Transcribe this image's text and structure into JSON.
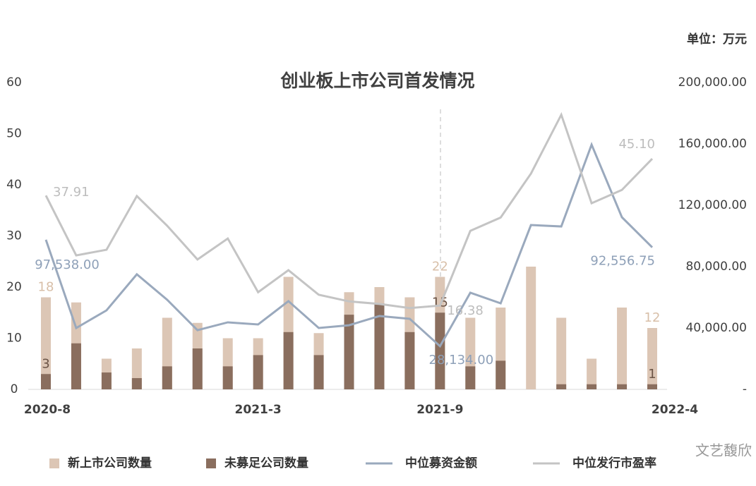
{
  "chart_data": {
    "type": "bar",
    "title": "创业板上市公司首发情况",
    "unit": "单位：万元",
    "watermark": "文艺馥欣",
    "categories": [
      "2020-8",
      null,
      null,
      null,
      null,
      null,
      null,
      "2021-3",
      null,
      null,
      null,
      null,
      null,
      "2021-9",
      null,
      null,
      null,
      null,
      null,
      null,
      "2022-4"
    ],
    "ylim": [
      0,
      60
    ],
    "yticks": [
      0,
      10,
      20,
      30,
      40,
      50,
      60
    ],
    "y2lim": [
      0,
      200000
    ],
    "y2ticks": [
      {
        "value": 0,
        "label": "-"
      },
      {
        "value": 40000,
        "label": "40,000.00"
      },
      {
        "value": 80000,
        "label": "80,000.00"
      },
      {
        "value": 120000,
        "label": "120,000.00"
      },
      {
        "value": 160000,
        "label": "160,000.00"
      },
      {
        "value": 200000,
        "label": "200,000.00"
      }
    ],
    "series": [
      {
        "name": "新上市公司数量",
        "type": "bar",
        "color": "#dcc6b5",
        "values": [
          18,
          17,
          6,
          8,
          14,
          13,
          10,
          10,
          22,
          11,
          19,
          20,
          18,
          22,
          14,
          16,
          24,
          14,
          6,
          16,
          12
        ],
        "value_labels": [
          "18",
          null,
          null,
          null,
          null,
          null,
          null,
          null,
          null,
          null,
          null,
          null,
          null,
          "22",
          null,
          null,
          null,
          null,
          null,
          null,
          "12"
        ]
      },
      {
        "name": "未募足公司数量",
        "type": "bar",
        "color": "#8a6e5e",
        "values": [
          3,
          9,
          3.3,
          2.2,
          4.5,
          8,
          4.5,
          6.7,
          11.2,
          6.7,
          14.6,
          16.8,
          11.2,
          15,
          4.5,
          5.6,
          0,
          1,
          1,
          1,
          1
        ],
        "value_labels": [
          "3",
          null,
          null,
          null,
          null,
          null,
          null,
          null,
          null,
          null,
          null,
          null,
          null,
          "15",
          null,
          null,
          null,
          null,
          null,
          null,
          "1"
        ]
      },
      {
        "name": "中位募资金额",
        "type": "line",
        "axis": "y2",
        "color": "#9aa9bd",
        "values": [
          97538,
          40000,
          51500,
          75000,
          58400,
          38600,
          43700,
          42300,
          57500,
          40000,
          41800,
          47800,
          46000,
          28134,
          63000,
          56100,
          107100,
          106200,
          159500,
          112200,
          92556.75
        ],
        "value_labels": [
          "97,538.00",
          null,
          null,
          null,
          null,
          null,
          null,
          null,
          null,
          null,
          null,
          null,
          null,
          "28,134.00",
          null,
          null,
          null,
          null,
          null,
          null,
          "92,556.75"
        ]
      },
      {
        "name": "中位发行市盈率",
        "type": "line",
        "color": "#c4c4c4",
        "values": [
          37.91,
          26.2,
          27.3,
          37.8,
          32,
          25.4,
          29.5,
          19,
          23.3,
          18.5,
          17.2,
          16.7,
          15.9,
          16.38,
          31,
          33.6,
          42.2,
          53.7,
          36.4,
          39,
          45.1
        ],
        "value_labels": [
          "37.91",
          null,
          null,
          null,
          null,
          null,
          null,
          null,
          null,
          null,
          null,
          null,
          null,
          "16.38",
          null,
          null,
          null,
          null,
          null,
          null,
          "45.10"
        ]
      }
    ]
  }
}
